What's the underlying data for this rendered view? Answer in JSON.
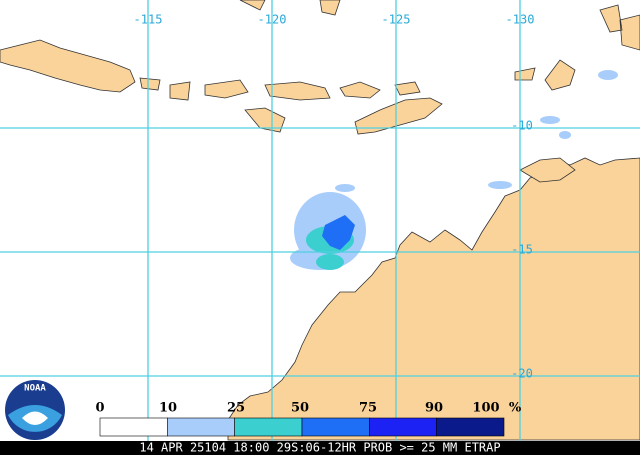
{
  "map": {
    "longitude_labels": [
      -115,
      -120,
      -125,
      -130
    ],
    "latitude_labels": [
      -10,
      -15,
      -20
    ],
    "legend": {
      "labels": [
        0,
        10,
        25,
        50,
        75,
        90,
        100
      ],
      "unit": "%",
      "colors": [
        "#ffffff",
        "#a8cdfb",
        "#3ccfd0",
        "#1e6ff6",
        "#1c22f4",
        "#0a1a8a"
      ]
    },
    "caption": "14 APR 25104 18:00 29S:06-12HR PROB >= 25 MM ETRAP",
    "logo_text": "NOAA"
  }
}
